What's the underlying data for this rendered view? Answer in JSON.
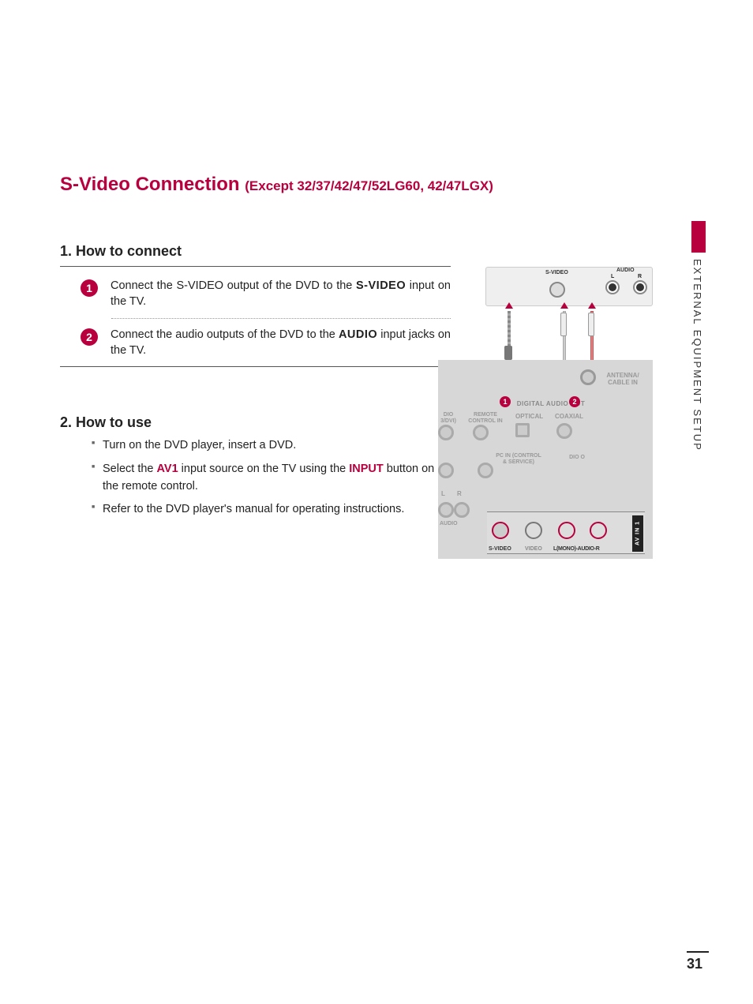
{
  "title_main": "S-Video Connection ",
  "title_sub": "(Except 32/37/42/47/52LG60, 42/47LGX)",
  "section1_heading": "1. How to connect",
  "step1_pre": "Connect the S-VIDEO output of the DVD to the ",
  "step1_bold": "S-VIDEO",
  "step1_post": " input on the TV.",
  "step2_pre": "Connect the audio outputs of the DVD to the ",
  "step2_bold": "AUDIO",
  "step2_post": " input jacks on the TV.",
  "section2_heading": "2. How to use",
  "use1": "Turn on the DVD player, insert a DVD.",
  "use2_pre": "Select the ",
  "use2_m1": "AV1",
  "use2_mid": " input source on the TV using the ",
  "use2_m2": "INPUT",
  "use2_post": " button on the remote control.",
  "use3": "Refer to the DVD player's manual for operating instructions.",
  "side_tab": "EXTERNAL EQUIPMENT SETUP",
  "page_num": "31",
  "diagram": {
    "src_svideo": "S-VIDEO",
    "src_audio": "AUDIO",
    "src_l": "L",
    "src_r": "R",
    "badge1": "1",
    "badge2": "2",
    "tv_antenna": "ANTENNA/ CABLE IN",
    "tv_dao": "DIGITAL AUDIO OUT",
    "tv_optical": "OPTICAL",
    "tv_coaxial": "COAXIAL",
    "tv_remote": "REMOTE CONTROL IN",
    "tv_dio": "DIO 3/DVI)",
    "tv_pcin": "PC IN (CONTROL & SERVICE)",
    "tv_dioo": "DIO O",
    "tv_l": "L",
    "tv_r": "R",
    "tv_audio": "AUDIO",
    "av_svideo": "S-VIDEO",
    "av_video": "VIDEO",
    "av_audio": "L(MONO)-AUDIO-R",
    "av_in1": "AV IN 1"
  },
  "colors": {
    "accent": "#b8003e",
    "text": "#222222",
    "muted": "#888888",
    "panel": "#d7d7d7",
    "bg": "#ffffff"
  }
}
